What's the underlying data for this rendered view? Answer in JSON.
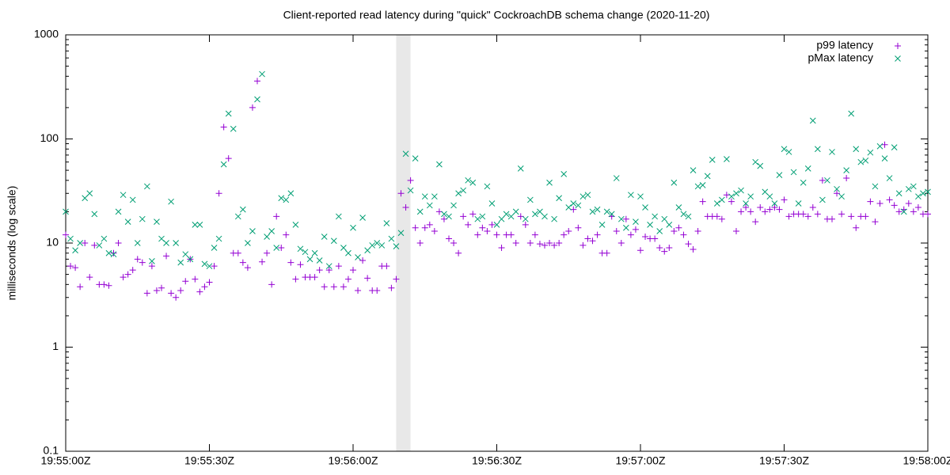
{
  "chart_data": {
    "type": "scatter",
    "title": "Client-reported read latency during \"quick\" CockroachDB schema change (2020-11-20)",
    "y_label": "milliseconds (log scale)",
    "log_scale": true,
    "legend": "top-right",
    "xlim": [
      "19:55:00Z",
      "19:58:00Z"
    ],
    "xticks": [
      "19:55:00Z",
      "19:55:30Z",
      "19:56:00Z",
      "19:56:30Z",
      "19:57:00Z",
      "19:57:30Z",
      "19:58:00Z"
    ],
    "ylim": [
      0.1,
      1000
    ],
    "yticks": [
      0.1,
      1,
      10,
      100,
      1000
    ],
    "highlight": [
      "19:56:09Z",
      "19:56:12Z"
    ],
    "x": [
      "19:55:00Z",
      "19:55:01Z",
      "19:55:02Z",
      "19:55:03Z",
      "19:55:04Z",
      "19:55:05Z",
      "19:55:06Z",
      "19:55:07Z",
      "19:55:08Z",
      "19:55:09Z",
      "19:55:10Z",
      "19:55:11Z",
      "19:55:12Z",
      "19:55:13Z",
      "19:55:14Z",
      "19:55:15Z",
      "19:55:16Z",
      "19:55:17Z",
      "19:55:18Z",
      "19:55:19Z",
      "19:55:20Z",
      "19:55:21Z",
      "19:55:22Z",
      "19:55:23Z",
      "19:55:24Z",
      "19:55:25Z",
      "19:55:26Z",
      "19:55:27Z",
      "19:55:28Z",
      "19:55:29Z",
      "19:55:30Z",
      "19:55:31Z",
      "19:55:32Z",
      "19:55:33Z",
      "19:55:34Z",
      "19:55:35Z",
      "19:55:36Z",
      "19:55:37Z",
      "19:55:38Z",
      "19:55:39Z",
      "19:55:40Z",
      "19:55:41Z",
      "19:55:42Z",
      "19:55:43Z",
      "19:55:44Z",
      "19:55:45Z",
      "19:55:46Z",
      "19:55:47Z",
      "19:55:48Z",
      "19:55:49Z",
      "19:55:50Z",
      "19:55:51Z",
      "19:55:52Z",
      "19:55:53Z",
      "19:55:54Z",
      "19:55:55Z",
      "19:55:56Z",
      "19:55:57Z",
      "19:55:58Z",
      "19:55:59Z",
      "19:56:00Z",
      "19:56:01Z",
      "19:56:02Z",
      "19:56:03Z",
      "19:56:04Z",
      "19:56:05Z",
      "19:56:06Z",
      "19:56:07Z",
      "19:56:08Z",
      "19:56:09Z",
      "19:56:10Z",
      "19:56:11Z",
      "19:56:12Z",
      "19:56:13Z",
      "19:56:14Z",
      "19:56:15Z",
      "19:56:16Z",
      "19:56:17Z",
      "19:56:18Z",
      "19:56:19Z",
      "19:56:20Z",
      "19:56:21Z",
      "19:56:22Z",
      "19:56:23Z",
      "19:56:24Z",
      "19:56:25Z",
      "19:56:26Z",
      "19:56:27Z",
      "19:56:28Z",
      "19:56:29Z",
      "19:56:30Z",
      "19:56:31Z",
      "19:56:32Z",
      "19:56:33Z",
      "19:56:34Z",
      "19:56:35Z",
      "19:56:36Z",
      "19:56:37Z",
      "19:56:38Z",
      "19:56:39Z",
      "19:56:40Z",
      "19:56:41Z",
      "19:56:42Z",
      "19:56:43Z",
      "19:56:44Z",
      "19:56:45Z",
      "19:56:46Z",
      "19:56:47Z",
      "19:56:48Z",
      "19:56:49Z",
      "19:56:50Z",
      "19:56:51Z",
      "19:56:52Z",
      "19:56:53Z",
      "19:56:54Z",
      "19:56:55Z",
      "19:56:56Z",
      "19:56:57Z",
      "19:56:58Z",
      "19:56:59Z",
      "19:57:00Z",
      "19:57:01Z",
      "19:57:02Z",
      "19:57:03Z",
      "19:57:04Z",
      "19:57:05Z",
      "19:57:06Z",
      "19:57:07Z",
      "19:57:08Z",
      "19:57:09Z",
      "19:57:10Z",
      "19:57:11Z",
      "19:57:12Z",
      "19:57:13Z",
      "19:57:14Z",
      "19:57:15Z",
      "19:57:16Z",
      "19:57:17Z",
      "19:57:18Z",
      "19:57:19Z",
      "19:57:20Z",
      "19:57:21Z",
      "19:57:22Z",
      "19:57:23Z",
      "19:57:24Z",
      "19:57:25Z",
      "19:57:26Z",
      "19:57:27Z",
      "19:57:28Z",
      "19:57:29Z",
      "19:57:30Z",
      "19:57:31Z",
      "19:57:32Z",
      "19:57:33Z",
      "19:57:34Z",
      "19:57:35Z",
      "19:57:36Z",
      "19:57:37Z",
      "19:57:38Z",
      "19:57:39Z",
      "19:57:40Z",
      "19:57:41Z",
      "19:57:42Z",
      "19:57:43Z",
      "19:57:44Z",
      "19:57:45Z",
      "19:57:46Z",
      "19:57:47Z",
      "19:57:48Z",
      "19:57:49Z",
      "19:57:50Z",
      "19:57:51Z",
      "19:57:52Z",
      "19:57:53Z",
      "19:57:54Z",
      "19:57:55Z",
      "19:57:56Z",
      "19:57:57Z",
      "19:57:58Z",
      "19:57:59Z",
      "19:58:00Z"
    ],
    "series": [
      {
        "name": "p99 latency",
        "color": "#9400d3",
        "marker": "plus",
        "values": [
          12,
          6,
          5.8,
          3.8,
          10,
          4.7,
          9.5,
          4,
          4,
          3.9,
          8,
          10,
          4.7,
          5,
          5.5,
          7,
          6.5,
          3.3,
          6,
          3.5,
          3.7,
          7.5,
          3.3,
          3,
          3.5,
          4.3,
          7,
          4.5,
          3.4,
          3.8,
          4.2,
          6,
          30,
          130,
          65,
          8,
          8,
          6.5,
          5.8,
          200,
          360,
          6.6,
          8,
          4,
          18,
          9,
          12,
          6.5,
          4.5,
          6.2,
          4.7,
          4.7,
          4.7,
          5.5,
          3.8,
          5.5,
          3.8,
          6,
          3.8,
          4.5,
          5.5,
          3.5,
          6.8,
          4.6,
          3.5,
          3.5,
          6,
          6,
          3.7,
          4.5,
          30,
          22,
          40,
          14,
          10,
          14,
          15,
          13,
          20,
          17,
          11,
          10,
          8,
          18,
          15,
          19,
          12,
          14,
          13,
          15,
          12,
          9,
          12,
          12,
          10,
          18,
          15,
          10,
          12,
          9.8,
          9.5,
          10,
          9.5,
          10,
          12,
          13,
          21,
          14,
          9.5,
          11,
          10.5,
          12,
          8,
          8,
          18,
          13,
          10,
          17,
          12,
          13.5,
          8.5,
          11.5,
          11,
          11,
          9,
          8.3,
          9,
          13,
          14,
          12,
          9.8,
          8.7,
          13,
          25,
          18,
          18,
          18,
          17,
          29,
          25,
          13,
          20,
          22,
          20,
          16,
          22,
          20,
          21,
          22,
          21,
          26,
          18,
          19,
          19,
          19,
          18,
          22,
          19,
          40,
          17,
          17,
          30,
          19,
          42,
          18,
          14,
          18,
          18,
          25,
          16,
          24,
          88,
          26,
          23,
          20,
          21,
          24,
          20,
          22,
          19,
          19
        ]
      },
      {
        "name": "pMax latency",
        "color": "#009e73",
        "marker": "cross",
        "values": [
          20,
          11,
          8.5,
          10,
          27,
          30,
          19,
          9.5,
          11,
          8,
          7.8,
          20,
          29,
          16,
          26,
          10,
          17,
          35,
          6.7,
          16,
          11,
          10,
          25,
          10,
          6.5,
          7.8,
          7,
          15,
          15,
          6.3,
          6,
          9,
          11,
          57,
          175,
          125,
          18,
          21,
          10,
          13,
          240,
          420,
          11.5,
          13,
          9,
          27,
          26,
          30,
          15,
          8.8,
          8.2,
          7,
          8,
          6.8,
          11.5,
          6,
          10.5,
          18,
          9,
          8,
          14,
          7.3,
          17.5,
          8.5,
          9.5,
          10,
          9.5,
          15.5,
          11,
          9.3,
          12.5,
          72,
          32,
          65,
          20,
          28,
          23,
          28,
          57,
          19,
          18,
          23,
          30,
          32,
          40,
          38,
          17,
          18,
          35,
          24,
          15,
          17,
          19,
          18,
          20,
          52,
          17,
          26,
          19,
          20,
          18,
          38,
          17,
          27,
          46,
          22,
          24,
          23,
          28,
          29,
          20,
          21,
          15,
          20,
          19,
          42,
          17,
          14,
          29,
          16,
          28,
          22,
          15,
          18,
          13,
          17,
          15,
          38,
          22,
          19,
          18,
          50,
          35,
          36,
          44,
          63,
          24,
          26,
          64,
          28,
          30,
          32,
          24,
          28,
          60,
          55,
          31,
          28,
          24,
          45,
          80,
          75,
          48,
          24,
          38,
          52,
          150,
          80,
          26,
          40,
          75,
          33,
          28,
          50,
          175,
          80,
          60,
          62,
          74,
          35,
          85,
          65,
          42,
          83,
          30,
          20,
          33,
          35,
          28,
          30,
          31
        ]
      }
    ]
  }
}
